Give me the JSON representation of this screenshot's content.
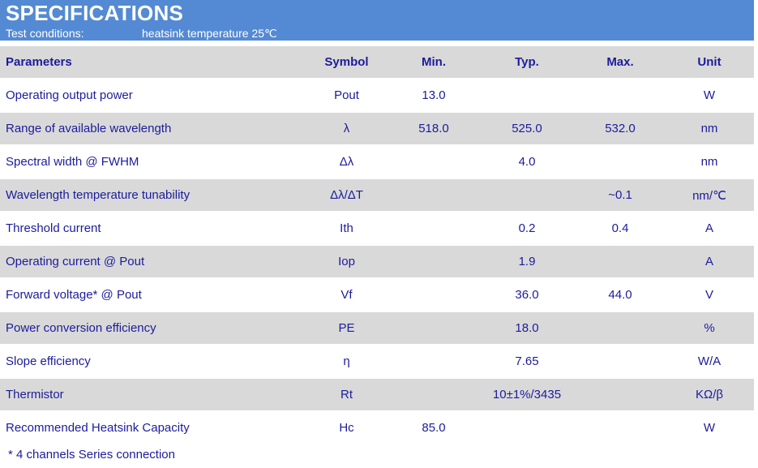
{
  "header": {
    "title": "SPECIFICATIONS",
    "test_conditions_label": "Test conditions:",
    "test_conditions_value": "heatsink temperature 25℃"
  },
  "table": {
    "columns": [
      "Parameters",
      "Symbol",
      "Min.",
      "Typ.",
      "Max.",
      "Unit"
    ],
    "rows": [
      {
        "parameter": "Operating output power",
        "symbol": "Pout",
        "min": "13.0",
        "typ": "",
        "max": "",
        "unit": "W"
      },
      {
        "parameter": "Range of available wavelength",
        "symbol": "λ",
        "min": "518.0",
        "typ": "525.0",
        "max": "532.0",
        "unit": "nm"
      },
      {
        "parameter": "Spectral width @ FWHM",
        "symbol": "Δλ",
        "min": "",
        "typ": "4.0",
        "max": "",
        "unit": "nm"
      },
      {
        "parameter": "Wavelength temperature tunability",
        "symbol": "Δλ/ΔT",
        "min": "",
        "typ": "",
        "max": "~0.1",
        "unit": "nm/℃"
      },
      {
        "parameter": "Threshold current",
        "symbol": "Ith",
        "min": "",
        "typ": "0.2",
        "max": "0.4",
        "unit": "A"
      },
      {
        "parameter": "Operating current @ Pout",
        "symbol": "Iop",
        "min": "",
        "typ": "1.9",
        "max": "",
        "unit": "A"
      },
      {
        "parameter": "Forward voltage* @ Pout",
        "symbol": "Vf",
        "min": "",
        "typ": "36.0",
        "max": "44.0",
        "unit": "V"
      },
      {
        "parameter": "Power conversion efficiency",
        "symbol": "PE",
        "min": "",
        "typ": "18.0",
        "max": "",
        "unit": "%"
      },
      {
        "parameter": "Slope efficiency",
        "symbol": "η",
        "min": "",
        "typ": "7.65",
        "max": "",
        "unit": "W/A"
      },
      {
        "parameter": "Thermistor",
        "symbol": "Rt",
        "min": "",
        "typ": "10±1%/3435",
        "max": "",
        "unit": "KΩ/β"
      },
      {
        "parameter": "Recommended Heatsink Capacity",
        "symbol": "Hc",
        "min": "85.0",
        "typ": "",
        "max": "",
        "unit": "W"
      }
    ],
    "footnote": "* 4 channels Series connection"
  },
  "colors": {
    "band_blue": "#548ad3",
    "row_shade": "#d9d9d9",
    "text_navy": "#1c1c9c",
    "title_white": "#ffffff"
  }
}
